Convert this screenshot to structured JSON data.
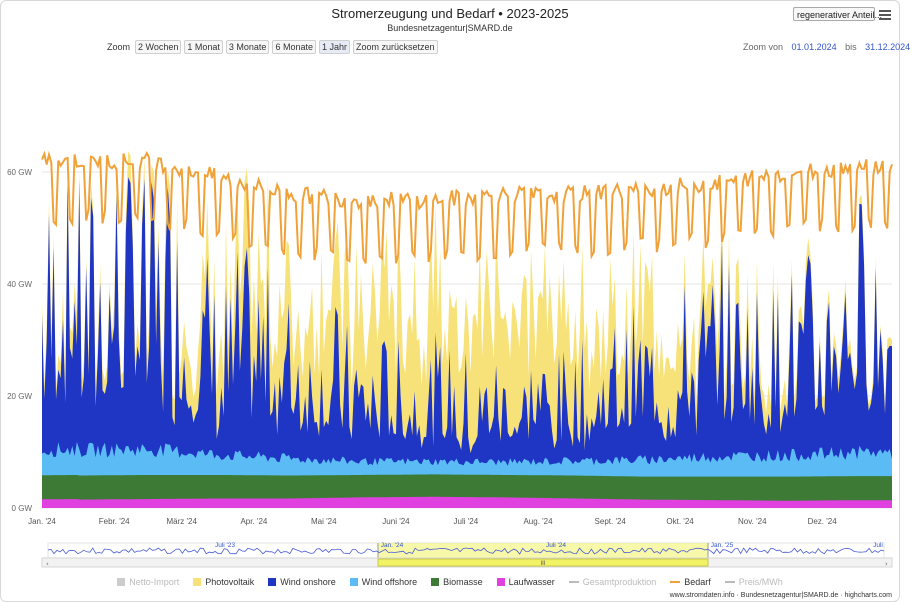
{
  "header": {
    "title": "Stromerzeugung und Bedarf  •  2023-2025",
    "subtitle": "Bundesnetzagentur|SMARD.de",
    "metric_select": "regenerativer Anteil..."
  },
  "zoom": {
    "label": "Zoom",
    "buttons": [
      "2 Wochen",
      "1 Monat",
      "3 Monate",
      "6 Monate",
      "1 Jahr",
      "Zoom zurücksetzen"
    ],
    "active": "1 Jahr",
    "from_label": "Zoom von",
    "from": "01.01.2024",
    "to_label": "bis",
    "to": "31.12.2024"
  },
  "chart_data": {
    "type": "area",
    "title": "Stromerzeugung und Bedarf  •  2023-2025",
    "subtitle": "Bundesnetzagentur|SMARD.de",
    "x_range": [
      "2024-01-01",
      "2024-12-31"
    ],
    "x_tick_labels": [
      "Jan. '24",
      "Febr. '24",
      "März '24",
      "Apr. '24",
      "Mai '24",
      "Juni '24",
      "Juli '24",
      "Aug. '24",
      "Sept. '24",
      "Okt. '24",
      "Nov. '24",
      "Dez. '24"
    ],
    "y_tick_labels": [
      "0 GW",
      "20 GW",
      "40 GW",
      "60 GW"
    ],
    "ylim": [
      0,
      80
    ],
    "grid": true,
    "stacked": true,
    "legend_position": "bottom",
    "monthly_typical_values_gw": {
      "months": [
        "Jan",
        "Feb",
        "Mär",
        "Apr",
        "Mai",
        "Jun",
        "Jul",
        "Aug",
        "Sep",
        "Okt",
        "Nov",
        "Dez"
      ],
      "series": [
        {
          "name": "Laufwasser",
          "color": "#e040e0",
          "values": [
            1.5,
            1.6,
            1.7,
            1.7,
            1.9,
            2.0,
            1.9,
            1.7,
            1.5,
            1.4,
            1.3,
            1.4
          ]
        },
        {
          "name": "Biomasse",
          "color": "#3d7a35",
          "values": [
            4.3,
            4.3,
            4.2,
            4.1,
            4.0,
            4.0,
            4.0,
            4.1,
            4.1,
            4.2,
            4.3,
            4.3
          ]
        },
        {
          "name": "Wind offshore",
          "color": "#5bbcf5",
          "values": [
            4.5,
            4.6,
            3.6,
            3.0,
            2.4,
            2.3,
            2.3,
            2.6,
            3.0,
            3.6,
            3.8,
            4.2
          ]
        },
        {
          "name": "Wind onshore",
          "color": "#1f35c4",
          "values": [
            17,
            20,
            12,
            11,
            8,
            7,
            7,
            7,
            9,
            12,
            11,
            15
          ]
        },
        {
          "name": "Photovoltaik",
          "color": "#f7e27a",
          "values": [
            2,
            4,
            9,
            14,
            16,
            18,
            18,
            16,
            12,
            7,
            3,
            1.5
          ]
        },
        {
          "name": "Bedarf",
          "color": "#f0a23a",
          "values": [
            58,
            58,
            55,
            52,
            51,
            51,
            52,
            52,
            53,
            54,
            56,
            57
          ]
        }
      ]
    },
    "navigator": {
      "labels": [
        "Juli '23",
        "Jan. '24",
        "Juli '24",
        "Jan. '25",
        "Juli"
      ],
      "handle_label": "III"
    }
  },
  "legend": [
    {
      "name": "Netto-Import",
      "color": "#cccccc",
      "kind": "box",
      "enabled": false
    },
    {
      "name": "Photovoltaik",
      "color": "#f7e27a",
      "kind": "box",
      "enabled": true
    },
    {
      "name": "Wind onshore",
      "color": "#1f35c4",
      "kind": "box",
      "enabled": true
    },
    {
      "name": "Wind offshore",
      "color": "#5bbcf5",
      "kind": "box",
      "enabled": true
    },
    {
      "name": "Biomasse",
      "color": "#3d7a35",
      "kind": "box",
      "enabled": true
    },
    {
      "name": "Laufwasser",
      "color": "#e040e0",
      "kind": "box",
      "enabled": true
    },
    {
      "name": "Gesamtproduktion",
      "color": "#bbbbbb",
      "kind": "dash",
      "enabled": false
    },
    {
      "name": "Bedarf",
      "color": "#f0a23a",
      "kind": "line",
      "enabled": true
    },
    {
      "name": "Preis/MWh",
      "color": "#bbbbbb",
      "kind": "dash",
      "enabled": false
    }
  ],
  "credit": "www.stromdaten.info · Bundesnetzagentur|SMARD.de · highcharts.com"
}
